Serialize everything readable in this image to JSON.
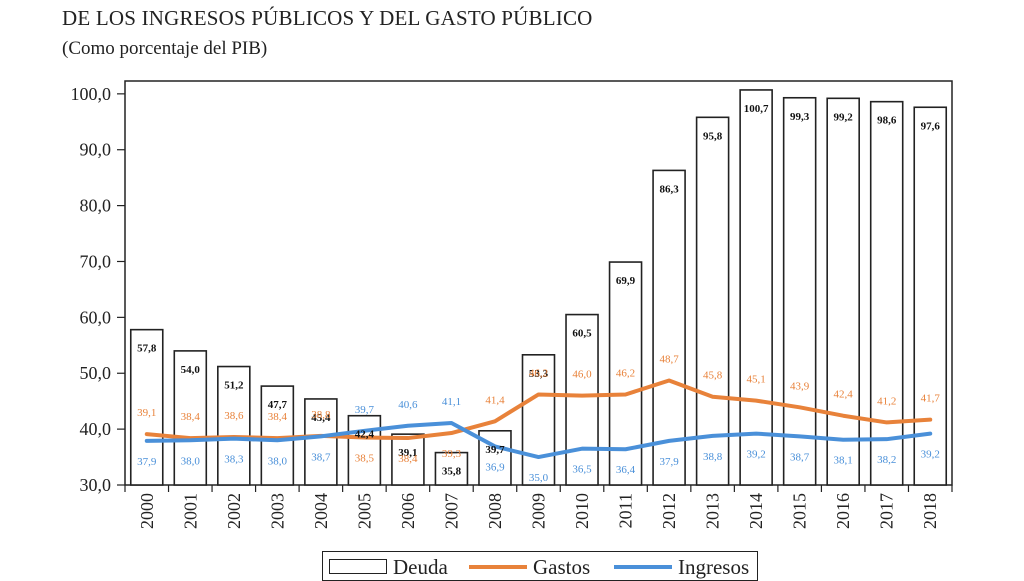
{
  "title": "DE LOS INGRESOS PÚBLICOS Y DEL GASTO PÚBLICO",
  "subtitle": "(Como porcentaje del PIB)",
  "colors": {
    "gastos": "#e8823a",
    "ingresos": "#4a90d9",
    "bars": "#222222"
  },
  "chart_data": {
    "type": "bar",
    "title": "DE LOS INGRESOS PÚBLICOS Y DEL GASTO PÚBLICO",
    "subtitle": "(Como porcentaje del PIB)",
    "categories": [
      "2000",
      "2001",
      "2002",
      "2003",
      "2004",
      "2005",
      "2006",
      "2007",
      "2008",
      "2009",
      "2010",
      "2011",
      "2012",
      "2013",
      "2014",
      "2015",
      "2016",
      "2017",
      "2018"
    ],
    "ylim": [
      30,
      100
    ],
    "yticks": [
      "30,0",
      "40,0",
      "50,0",
      "60,0",
      "70,0",
      "80,0",
      "90,0",
      "100,0"
    ],
    "grid": false,
    "legend_position": "bottom",
    "series": [
      {
        "name": "Deuda",
        "type": "bar",
        "values": [
          57.8,
          54.0,
          51.2,
          47.7,
          45.4,
          42.4,
          39.1,
          35.8,
          39.7,
          53.3,
          60.5,
          69.9,
          86.3,
          95.8,
          100.7,
          99.3,
          99.2,
          98.6,
          97.6
        ],
        "labels": [
          "57,8",
          "54,0",
          "51,2",
          "47,7",
          "45,4",
          "42,4",
          "39,1",
          "35,8",
          "39,7",
          "53,3",
          "60,5",
          "69,9",
          "86,3",
          "95,8",
          "100,7",
          "99,3",
          "99,2",
          "98,6",
          "97,6"
        ]
      },
      {
        "name": "Gastos",
        "type": "line",
        "values": [
          39.1,
          38.4,
          38.6,
          38.4,
          38.8,
          38.5,
          38.4,
          39.3,
          41.4,
          46.2,
          46.0,
          46.2,
          48.7,
          45.8,
          45.1,
          43.9,
          42.4,
          41.2,
          41.7
        ],
        "labels": [
          "39,1",
          "38,4",
          "38,6",
          "38,4",
          "38,8",
          "38,5",
          "38,4",
          "39,3",
          "41,4",
          "46,2",
          "46,0",
          "46,2",
          "48,7",
          "45,8",
          "45,1",
          "43,9",
          "42,4",
          "41,2",
          "41,7"
        ]
      },
      {
        "name": "Ingresos",
        "type": "line",
        "values": [
          37.9,
          38.0,
          38.3,
          38.0,
          38.7,
          39.7,
          40.6,
          41.1,
          36.9,
          35.0,
          36.5,
          36.4,
          37.9,
          38.8,
          39.2,
          38.7,
          38.1,
          38.2,
          39.2
        ],
        "labels": [
          "37,9",
          "38,0",
          "38,3",
          "38,0",
          "38,7",
          "39,7",
          "40,6",
          "41,1",
          "36,9",
          "35,0",
          "36,5",
          "36,4",
          "37,9",
          "38,8",
          "39,2",
          "38,7",
          "38,1",
          "38,2",
          "39,2"
        ]
      }
    ]
  }
}
